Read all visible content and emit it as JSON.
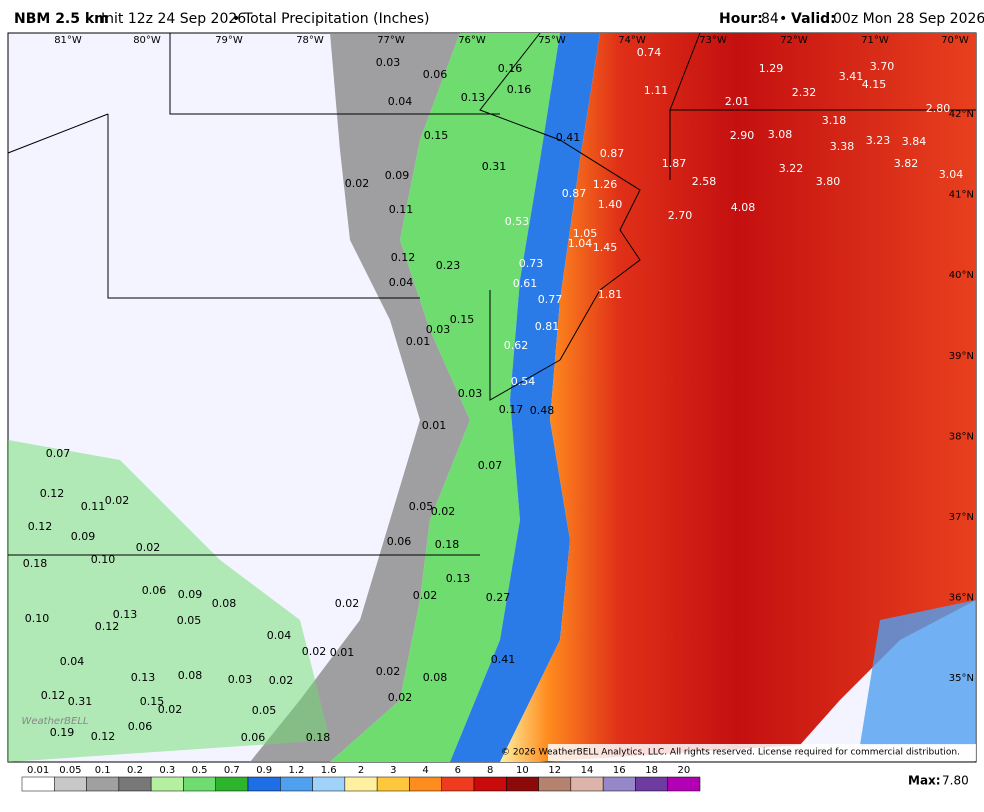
{
  "header": {
    "model": "NBM 2.5 km",
    "init": "Init 12z 24 Sep 2026",
    "separator": "•",
    "product": "Total Precipitation (Inches)",
    "hour_label": "Hour:",
    "hour": "84",
    "valid_label": "Valid:",
    "valid": "00z Mon 28 Sep 2026"
  },
  "map": {
    "longitudes": [
      "81°W",
      "80°W",
      "79°W",
      "78°W",
      "77°W",
      "76°W",
      "75°W",
      "74°W",
      "73°W",
      "72°W",
      "71°W",
      "70°W"
    ],
    "latitudes": [
      "42°N",
      "41°N",
      "40°N",
      "39°N",
      "38°N",
      "37°N",
      "36°N",
      "35°N"
    ],
    "point_labels": [
      "0.03",
      "0.06",
      "0.16",
      "0.74",
      "1.29",
      "3.41",
      "3.70",
      "4.15",
      "0.04",
      "0.13",
      "0.16",
      "1.11",
      "2.01",
      "2.32",
      "2.80",
      "0.15",
      "0.41",
      "3.18",
      "2.90",
      "3.08",
      "3.38",
      "3.23",
      "3.84",
      "0.87",
      "1.87",
      "3.22",
      "3.82",
      "3.04",
      "0.02",
      "0.09",
      "0.31",
      "1.26",
      "2.58",
      "3.80",
      "0.87",
      "1.40",
      "0.11",
      "4.08",
      "2.70",
      "0.53",
      "1.05",
      "1.04",
      "1.45",
      "0.12",
      "0.23",
      "0.73",
      "0.04",
      "0.61",
      "0.77",
      "1.81",
      "0.03",
      "0.15",
      "0.81",
      "0.01",
      "0.62",
      "0.54",
      "0.03",
      "0.17",
      "0.48",
      "0.01",
      "0.07",
      "0.07",
      "0.12",
      "0.02",
      "0.11",
      "0.05",
      "0.02",
      "0.12",
      "0.09",
      "0.02",
      "0.06",
      "0.18",
      "0.18",
      "0.10",
      "0.06",
      "0.09",
      "0.08",
      "0.13",
      "0.02",
      "0.27",
      "0.02",
      "0.10",
      "0.13",
      "0.12",
      "0.05",
      "0.04",
      "0.02",
      "0.01",
      "0.04",
      "0.41",
      "0.31",
      "0.12",
      "0.13",
      "0.08",
      "0.03",
      "0.02",
      "0.02",
      "0.08",
      "0.15",
      "0.02",
      "0.05",
      "0.02",
      "0.06",
      "0.19",
      "0.12",
      "0.06",
      "0.18"
    ],
    "logo": "WeatherBELL",
    "copyright": "© 2026 WeatherBELL Analytics, LLC. All rights reserved. License required for commercial distribution."
  },
  "legend": {
    "labels": [
      "0.01",
      "0.05",
      "0.1",
      "0.2",
      "0.3",
      "0.5",
      "0.7",
      "0.9",
      "1.2",
      "1.6",
      "2",
      "3",
      "4",
      "6",
      "8",
      "10",
      "12",
      "14",
      "16",
      "18",
      "20"
    ],
    "colors": [
      "#ffffff",
      "#c8c8c8",
      "#a0a0a0",
      "#787878",
      "#b4f0a0",
      "#6edc6e",
      "#2db42d",
      "#1e6ee6",
      "#50a0f0",
      "#a0d2fa",
      "#fff0a0",
      "#ffc83c",
      "#ff8c1e",
      "#f03c1e",
      "#c80a0a",
      "#8c0a0a",
      "#b4826e",
      "#dcb4aa",
      "#9688c8",
      "#6e3ca0",
      "#b400b4"
    ],
    "max_label": "Max:",
    "max": "7.80"
  }
}
